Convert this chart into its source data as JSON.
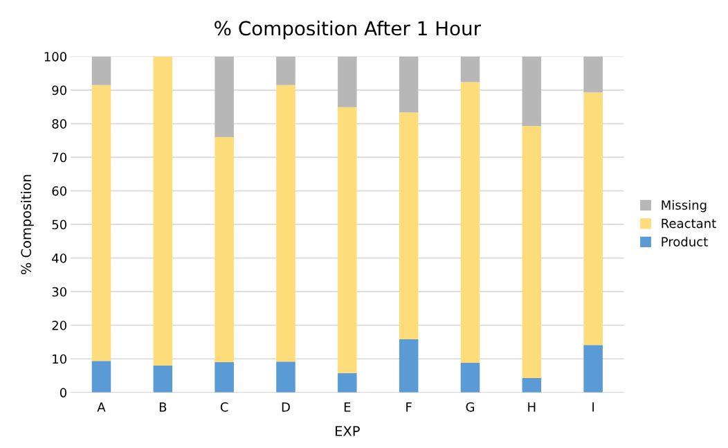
{
  "chart_data": {
    "type": "bar",
    "stacked": true,
    "title": "% Composition After 1 Hour",
    "xlabel": "EXP",
    "ylabel": "% Composition",
    "categories": [
      "A",
      "B",
      "C",
      "D",
      "E",
      "F",
      "G",
      "H",
      "I"
    ],
    "series": [
      {
        "name": "Product",
        "color": "#5b9bd5",
        "values": [
          9.4,
          8.0,
          9.0,
          9.2,
          5.8,
          15.8,
          8.8,
          4.3,
          14.1
        ]
      },
      {
        "name": "Reactant",
        "color": "#ffdc7a",
        "values": [
          82.1,
          92.0,
          67.0,
          82.3,
          79.1,
          67.5,
          83.6,
          75.0,
          75.2
        ]
      },
      {
        "name": "Missing",
        "color": "#b7b7b7",
        "values": [
          8.5,
          0,
          24.0,
          8.5,
          15.1,
          16.7,
          7.6,
          20.7,
          10.7
        ]
      }
    ],
    "ylim": [
      0,
      100
    ],
    "yticks": [
      0,
      10,
      20,
      30,
      40,
      50,
      60,
      70,
      80,
      90,
      100
    ],
    "grid": "y",
    "legend": "right"
  }
}
